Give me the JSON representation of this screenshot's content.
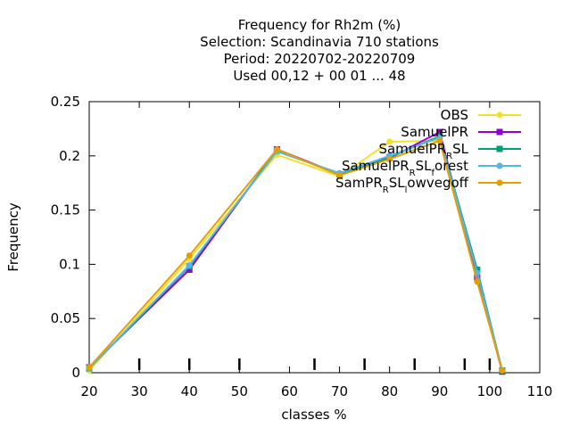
{
  "chart_data": {
    "type": "line",
    "title_lines": [
      "Frequency  for Rh2m (%)",
      "Selection: Scandinavia    710 stations",
      "Period: 20220702-20220709",
      "Used  00,12  + 00 01 ... 48"
    ],
    "xlabel": "classes %",
    "ylabel": "Frequency",
    "xlim": [
      20,
      110
    ],
    "ylim": [
      0,
      0.25
    ],
    "x_ticks": [
      20,
      30,
      40,
      50,
      60,
      70,
      80,
      90,
      100,
      110
    ],
    "y_ticks": [
      0,
      0.05,
      0.1,
      0.15,
      0.2,
      0.25
    ],
    "x_tick_labels": [
      "20",
      "30",
      "40",
      "50",
      "60",
      "70",
      "80",
      "90",
      "100",
      "110"
    ],
    "y_tick_labels": [
      "0",
      "0.05",
      "0.1",
      "0.15",
      "0.2",
      "0.25"
    ],
    "class_markers": [
      30,
      40,
      50,
      65,
      75,
      85,
      95,
      100
    ],
    "grid": false,
    "legend_position": "top-right",
    "x": [
      20,
      40,
      57.5,
      70,
      80,
      90,
      97.5,
      102.5
    ],
    "series": [
      {
        "name": "OBS",
        "label_parts": [
          [
            "OBS",
            ""
          ]
        ],
        "color": "#f0e130",
        "marker": "circle",
        "values": [
          0.002,
          0.105,
          0.201,
          0.181,
          0.213,
          0.214,
          0.088,
          0.002
        ]
      },
      {
        "name": "SamuelPR",
        "label_parts": [
          [
            "SamuelPR",
            ""
          ]
        ],
        "color": "#9400d3",
        "marker": "square",
        "values": [
          0.005,
          0.095,
          0.206,
          0.183,
          0.198,
          0.222,
          0.088,
          0.001
        ]
      },
      {
        "name": "SamuelPR_RSL",
        "label_parts": [
          [
            "SamuelPR",
            ""
          ],
          [
            "R",
            "sub"
          ],
          [
            "SL",
            ""
          ]
        ],
        "color": "#009e73",
        "marker": "square",
        "values": [
          0.004,
          0.098,
          0.205,
          0.183,
          0.199,
          0.218,
          0.095,
          0.002
        ]
      },
      {
        "name": "SamuelPR_RSL_forest",
        "label_parts": [
          [
            "SamuelPR",
            ""
          ],
          [
            "R",
            "sub"
          ],
          [
            "SL",
            ""
          ],
          [
            "f",
            "sub"
          ],
          [
            "orest",
            ""
          ]
        ],
        "color": "#56b4e9",
        "marker": "circle",
        "values": [
          0.004,
          0.099,
          0.204,
          0.184,
          0.2,
          0.217,
          0.092,
          0.002
        ]
      },
      {
        "name": "SamPR_RSL_lowvegoff",
        "label_parts": [
          [
            "SamPR",
            ""
          ],
          [
            "R",
            "sub"
          ],
          [
            "SL",
            ""
          ],
          [
            "l",
            "sub"
          ],
          [
            "owvegoff",
            ""
          ]
        ],
        "color": "#e69f00",
        "marker": "circle",
        "values": [
          0.005,
          0.108,
          0.206,
          0.182,
          0.197,
          0.214,
          0.084,
          0.002
        ]
      }
    ]
  }
}
